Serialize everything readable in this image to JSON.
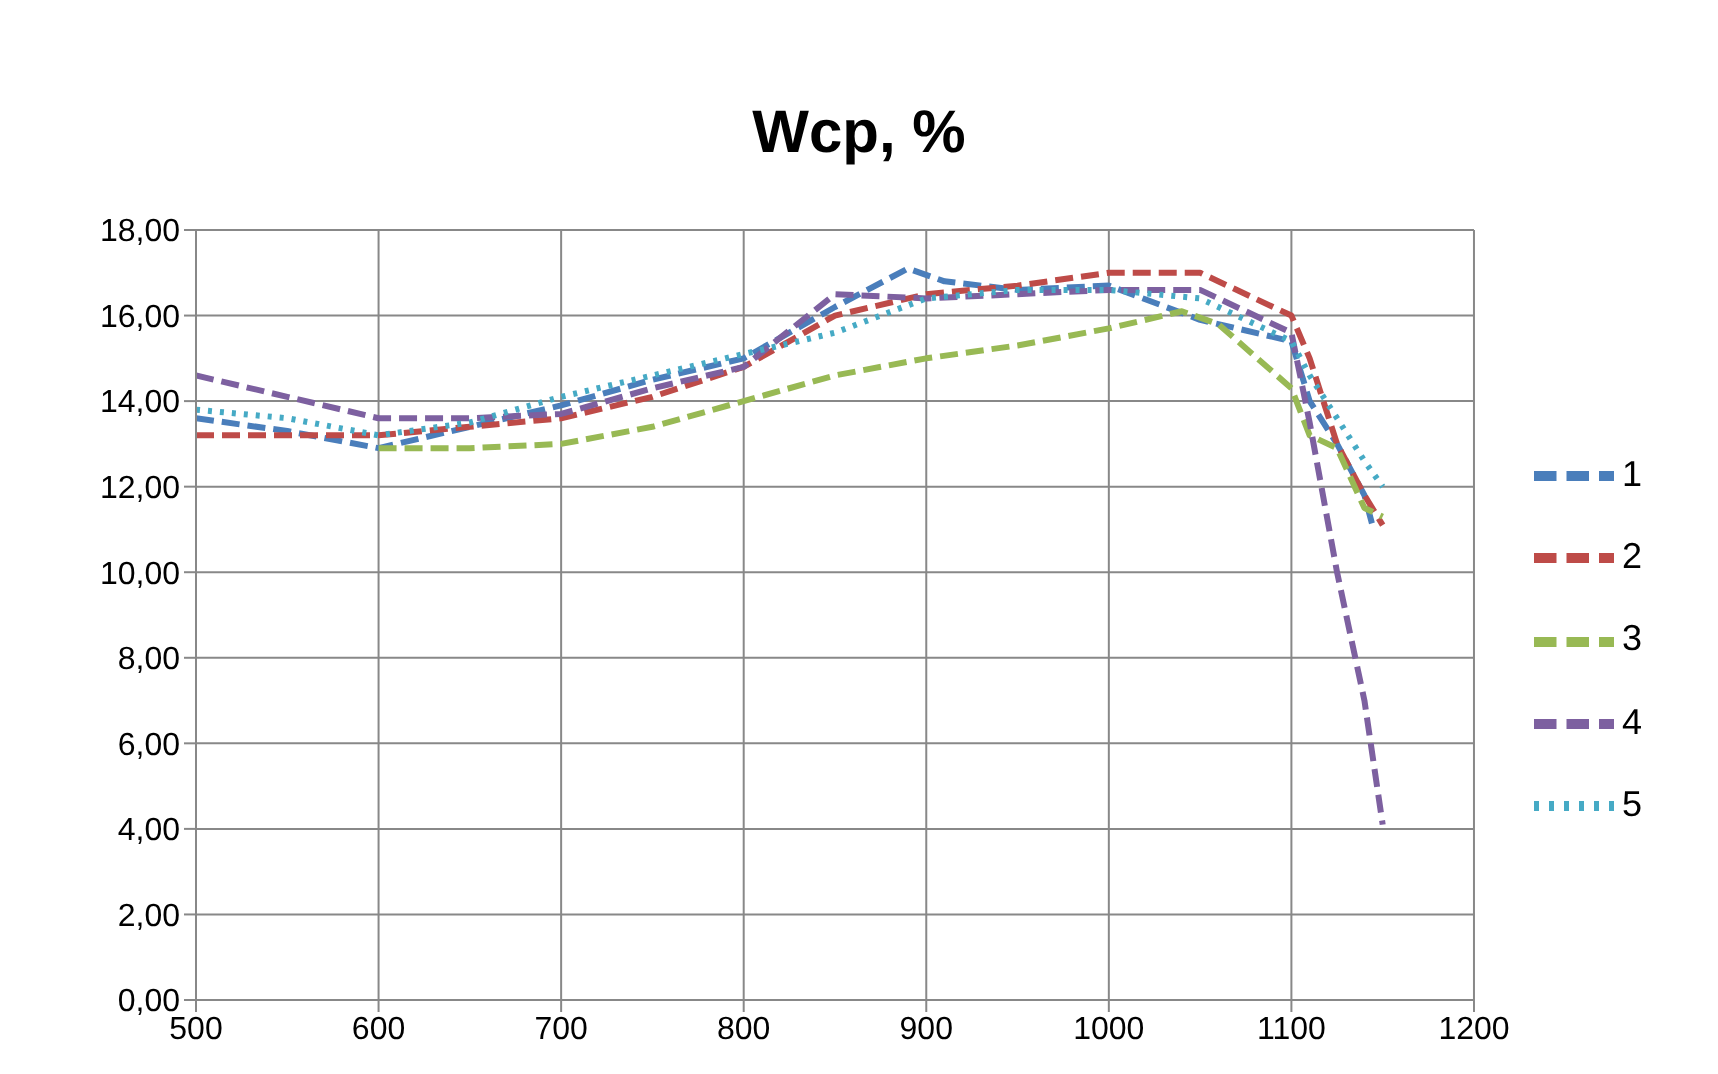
{
  "chart_data": {
    "type": "line",
    "title": "Wcp, %",
    "xlim": [
      500,
      1200
    ],
    "xticks": [
      500,
      600,
      700,
      800,
      900,
      1000,
      1100,
      1200
    ],
    "ylim": [
      0,
      18
    ],
    "yticks": [
      {
        "value": 0,
        "label": "0,00"
      },
      {
        "value": 2,
        "label": "2,00"
      },
      {
        "value": 4,
        "label": "4,00"
      },
      {
        "value": 6,
        "label": "6,00"
      },
      {
        "value": 8,
        "label": "8,00"
      },
      {
        "value": 10,
        "label": "10,00"
      },
      {
        "value": 12,
        "label": "12,00"
      },
      {
        "value": 14,
        "label": "14,00"
      },
      {
        "value": 16,
        "label": "16,00"
      },
      {
        "value": 18,
        "label": "18,00"
      }
    ],
    "grid": true,
    "legend": "right",
    "marker": "none",
    "series": [
      {
        "name": "1",
        "color": "#4a7ebb",
        "line_style": "dashed",
        "x": [
          500,
          550,
          600,
          650,
          700,
          750,
          800,
          850,
          890,
          910,
          950,
          1000,
          1050,
          1100,
          1110,
          1125,
          1140,
          1145
        ],
        "values": [
          13.6,
          13.3,
          12.9,
          13.4,
          13.9,
          14.5,
          15.0,
          16.2,
          17.1,
          16.8,
          16.6,
          16.7,
          15.9,
          15.4,
          14.0,
          13.0,
          11.8,
          11.0
        ]
      },
      {
        "name": "2",
        "color": "#be4b48",
        "line_style": "dashed",
        "x": [
          500,
          550,
          600,
          650,
          700,
          750,
          800,
          850,
          900,
          950,
          1000,
          1050,
          1100,
          1110,
          1125,
          1140,
          1150
        ],
        "values": [
          13.2,
          13.2,
          13.2,
          13.4,
          13.6,
          14.1,
          14.8,
          16.0,
          16.5,
          16.7,
          17.0,
          17.0,
          16.0,
          15.0,
          13.0,
          11.8,
          11.1
        ]
      },
      {
        "name": "3",
        "color": "#98b954",
        "line_style": "dashed",
        "x": [
          600,
          650,
          700,
          750,
          800,
          850,
          900,
          950,
          1000,
          1040,
          1060,
          1100,
          1110,
          1125,
          1140,
          1150
        ],
        "values": [
          12.9,
          12.9,
          13.0,
          13.4,
          14.0,
          14.6,
          15.0,
          15.3,
          15.7,
          16.1,
          15.8,
          14.3,
          13.2,
          12.9,
          11.5,
          11.3
        ]
      },
      {
        "name": "4",
        "color": "#7d60a0",
        "line_style": "dashed",
        "x": [
          500,
          550,
          600,
          650,
          700,
          750,
          800,
          850,
          900,
          950,
          1000,
          1050,
          1100,
          1110,
          1125,
          1140,
          1150
        ],
        "values": [
          14.6,
          14.1,
          13.6,
          13.6,
          13.7,
          14.3,
          14.8,
          16.5,
          16.4,
          16.5,
          16.6,
          16.6,
          15.6,
          13.5,
          10.0,
          7.0,
          4.1
        ]
      },
      {
        "name": "5",
        "color": "#46aac5",
        "line_style": "dotted",
        "x": [
          500,
          550,
          600,
          650,
          700,
          750,
          800,
          850,
          900,
          950,
          1000,
          1050,
          1100,
          1110,
          1125,
          1140,
          1150
        ],
        "values": [
          13.8,
          13.6,
          13.2,
          13.5,
          14.1,
          14.6,
          15.1,
          15.6,
          16.4,
          16.6,
          16.6,
          16.4,
          15.4,
          14.6,
          13.6,
          12.6,
          12.0
        ]
      }
    ]
  }
}
